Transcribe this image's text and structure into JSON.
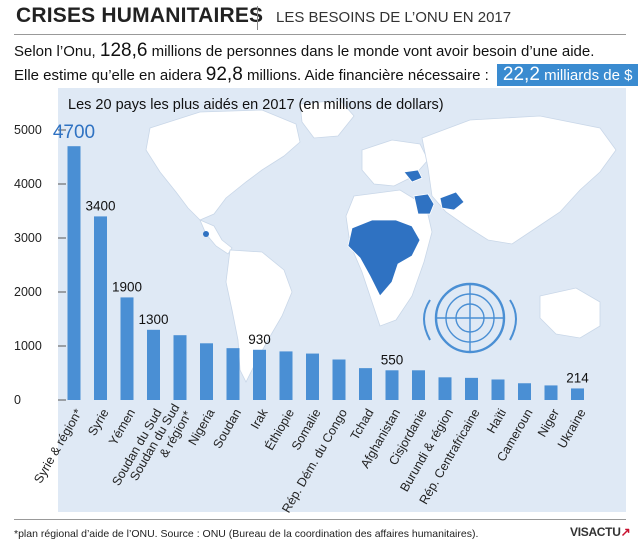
{
  "header": {
    "title": "CRISES HUMANITAIRES",
    "subtitle": "LES BESOINS DE L’ONU EN 2017"
  },
  "intro": {
    "line1_a": "Selon l’Onu,",
    "line1_num": "128,6",
    "line1_b": "millions de personnes dans le monde vont avoir besoin d’une aide.",
    "line2_a": "Elle estime qu’elle en aidera",
    "line2_num": "92,8",
    "line2_b": "millions. Aide financière nécessaire :",
    "funding_num": "22,2",
    "funding_unit": "milliards de $"
  },
  "footer": {
    "source": "*plan régional d’aide de l’ONU. Source : ONU (Bureau de la coordination des affaires humanitaires).",
    "logo_main": "VISACTU",
    "logo_accent": "↗"
  },
  "colors": {
    "bar": "#4a8fd4",
    "panel": "#dfe9f5",
    "map": "#ffffff",
    "highlight": "#2f72c2",
    "funding_box": "#3a8bd0"
  },
  "chart_data": {
    "type": "bar",
    "title": "Les 20 pays les plus aidés en 2017 (en millions de dollars)",
    "categories": [
      "Syrie & région*",
      "Syrie",
      "Yémen",
      "Soudan du Sud",
      "Soudan du Sud & région*",
      "Nigeria",
      "Soudan",
      "Irak",
      "Éthiopie",
      "Somalie",
      "Rép. Dém. du Congo",
      "Tchad",
      "Afghanistan",
      "Cisjordanie",
      "Burundi & région",
      "Rép. Centrafricaine",
      "Haïti",
      "Cameroun",
      "Niger",
      "Ukraine"
    ],
    "values": [
      4700,
      3400,
      1900,
      1300,
      1200,
      1050,
      960,
      930,
      900,
      860,
      750,
      590,
      550,
      550,
      420,
      410,
      380,
      310,
      270,
      214
    ],
    "value_labels": [
      "4700",
      "3400",
      "1900",
      "1300",
      "",
      "",
      "",
      "930",
      "",
      "",
      "",
      "",
      "550",
      "",
      "",
      "",
      "",
      "",
      "",
      "214"
    ],
    "yticks": [
      0,
      1000,
      2000,
      3000,
      4000,
      5000
    ],
    "ytick_labels": [
      "0",
      "1000",
      "2000",
      "3000",
      "4000",
      "5000"
    ],
    "ylim": [
      0,
      5000
    ],
    "grid": false,
    "legend": "none"
  }
}
